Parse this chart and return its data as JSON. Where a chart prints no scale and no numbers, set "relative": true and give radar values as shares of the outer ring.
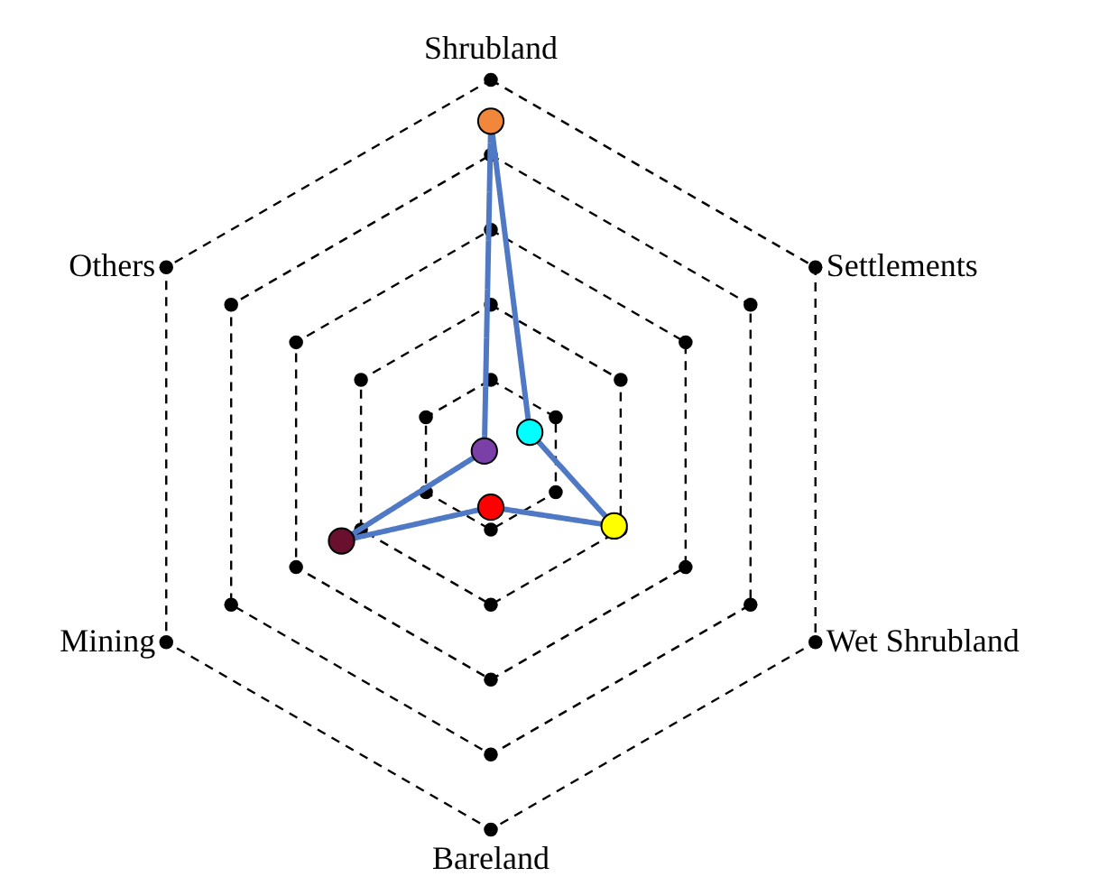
{
  "chart_data": {
    "type": "radar",
    "categories": [
      "Shrubland",
      "Settlements",
      "Wet Shrubland",
      "Bareland",
      "Mining",
      "Others"
    ],
    "relative": true,
    "series": [
      {
        "color": "#4f79c4",
        "colors": [
          "#f0873a",
          "#00ffff",
          "#ffff00",
          "#ff0000",
          "#6b0f2f",
          "#7b3fa8"
        ],
        "values": [
          0.89,
          0.12,
          0.38,
          0.14,
          0.46,
          0.02
        ]
      }
    ],
    "grid": true,
    "marker": "circle",
    "line_style": "solid"
  }
}
